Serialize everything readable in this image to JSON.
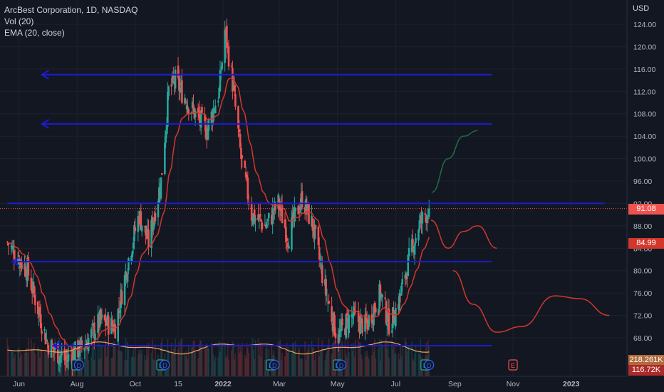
{
  "legend": {
    "title": "ArcBest Corporation, 1D, NASDAQ",
    "volume": "Vol (20)",
    "ema": "EMA (20, close)"
  },
  "price_tags": {
    "last": "91.08",
    "ema": "84.99",
    "vol_ma": "218.261K",
    "vol": "116.72K"
  },
  "colors": {
    "background": "#131722",
    "grid": "#1e222d",
    "up": "#26a69a",
    "down": "#ef5350",
    "ema": "#d3372c",
    "level_line": "#1c1ccf",
    "vol_ma": "#f3a85f",
    "tag_last": "#ef5350",
    "tag_ema": "#d3372c",
    "tag_vol_ma": "#b06a3c",
    "tag_vol": "#ad2a2a"
  },
  "chart_data": {
    "type": "candlestick",
    "y_axis": {
      "unit": "USD",
      "ticks": [
        "124.00",
        "120.00",
        "116.00",
        "112.00",
        "108.00",
        "104.00",
        "100.00",
        "96.00",
        "92.00",
        "88.00",
        "84.00",
        "80.00",
        "76.00",
        "72.00",
        "68.00"
      ],
      "ylim": [
        64,
        127
      ]
    },
    "x_axis": {
      "ticks": [
        "Jun",
        "Aug",
        "Oct",
        "15",
        "2022",
        "Mar",
        "May",
        "Jul",
        "Sep",
        "Nov",
        "2023"
      ]
    },
    "price_waypoints": [
      {
        "date": "2021-05-20",
        "price": 85
      },
      {
        "date": "2021-06-10",
        "price": 80
      },
      {
        "date": "2021-07-01",
        "price": 67
      },
      {
        "date": "2021-07-20",
        "price": 64
      },
      {
        "date": "2021-08-10",
        "price": 67
      },
      {
        "date": "2021-08-25",
        "price": 71
      },
      {
        "date": "2021-09-10",
        "price": 70
      },
      {
        "date": "2021-09-25",
        "price": 83
      },
      {
        "date": "2021-10-05",
        "price": 90
      },
      {
        "date": "2021-10-15",
        "price": 85
      },
      {
        "date": "2021-10-28",
        "price": 96
      },
      {
        "date": "2021-11-05",
        "price": 112
      },
      {
        "date": "2021-11-12",
        "price": 114
      },
      {
        "date": "2021-11-25",
        "price": 110
      },
      {
        "date": "2021-12-15",
        "price": 105
      },
      {
        "date": "2021-12-28",
        "price": 112
      },
      {
        "date": "2022-01-03",
        "price": 123
      },
      {
        "date": "2022-01-10",
        "price": 115
      },
      {
        "date": "2022-01-20",
        "price": 100
      },
      {
        "date": "2022-01-31",
        "price": 90
      },
      {
        "date": "2022-02-15",
        "price": 88
      },
      {
        "date": "2022-02-28",
        "price": 92
      },
      {
        "date": "2022-03-10",
        "price": 86
      },
      {
        "date": "2022-03-25",
        "price": 93
      },
      {
        "date": "2022-04-05",
        "price": 88
      },
      {
        "date": "2022-04-20",
        "price": 75
      },
      {
        "date": "2022-05-01",
        "price": 68
      },
      {
        "date": "2022-05-15",
        "price": 72
      },
      {
        "date": "2022-05-31",
        "price": 70
      },
      {
        "date": "2022-06-15",
        "price": 76
      },
      {
        "date": "2022-06-25",
        "price": 70
      },
      {
        "date": "2022-07-05",
        "price": 75
      },
      {
        "date": "2022-07-15",
        "price": 82
      },
      {
        "date": "2022-07-25",
        "price": 88
      },
      {
        "date": "2022-08-05",
        "price": 91.08
      }
    ],
    "ema_last": 84.99,
    "last_price": 91.08,
    "horizontal_levels": [
      {
        "price": 115,
        "from": "2021-06-25",
        "to": "2022-10-10",
        "arrow": "left"
      },
      {
        "price": 106.2,
        "from": "2021-06-25",
        "to": "2022-10-10",
        "arrow": "left"
      },
      {
        "price": 92,
        "from": "2021-05-20",
        "to": "2023-02-05",
        "arrow": "none"
      },
      {
        "price": 81.6,
        "from": "2021-05-25",
        "to": "2022-10-10",
        "arrow": "left"
      },
      {
        "price": 66.6,
        "from": "2021-07-07",
        "to": "2022-10-10",
        "arrow": "left"
      }
    ],
    "projections": [
      {
        "color": "#1f6e43",
        "points": [
          [
            "2022-08-08",
            94
          ],
          [
            "2022-08-25",
            100
          ],
          [
            "2022-09-10",
            104
          ],
          [
            "2022-09-25",
            105
          ]
        ]
      },
      {
        "color": "#d3372c",
        "points": [
          [
            "2022-08-07",
            89
          ],
          [
            "2022-08-25",
            84
          ],
          [
            "2022-09-10",
            87
          ],
          [
            "2022-09-25",
            88
          ],
          [
            "2022-10-15",
            84
          ]
        ]
      },
      {
        "color": "#d3372c",
        "points": [
          [
            "2022-08-30",
            80
          ],
          [
            "2022-09-20",
            74
          ],
          [
            "2022-10-15",
            69
          ],
          [
            "2022-11-10",
            70
          ],
          [
            "2022-12-15",
            75.5
          ],
          [
            "2023-01-10",
            75
          ],
          [
            "2023-02-10",
            72
          ]
        ]
      }
    ],
    "event_markers": [
      {
        "date": "2021-07-31",
        "letter": "E"
      },
      {
        "date": "2021-08-03",
        "letter": "D"
      },
      {
        "date": "2021-10-28",
        "letter": "E"
      },
      {
        "date": "2021-11-01",
        "letter": "D"
      },
      {
        "date": "2022-02-20",
        "letter": "E"
      },
      {
        "date": "2022-02-24",
        "letter": "D"
      },
      {
        "date": "2022-05-01",
        "letter": "E"
      },
      {
        "date": "2022-05-05",
        "letter": "D"
      },
      {
        "date": "2022-08-01",
        "letter": "E"
      },
      {
        "date": "2022-08-05",
        "letter": "D"
      },
      {
        "date": "2022-11-01",
        "letter": "E"
      }
    ]
  }
}
